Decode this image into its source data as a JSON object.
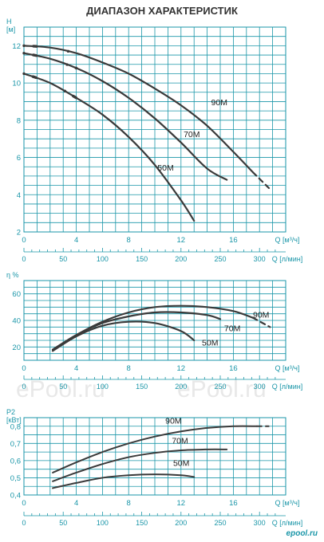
{
  "title": "ДИАПАЗОН ХАРАКТЕРИСТИК",
  "watermarks": [
    "ePool.ru",
    "ePool.ru"
  ],
  "logo": "epool.ru",
  "colors": {
    "grid": "#1a96a8",
    "curve": "#3a3a3a"
  },
  "chart_data": [
    {
      "id": "head",
      "type": "line",
      "ylabel_top": "H",
      "ylabel_unit": "[м]",
      "xlabel": "Q [м³/ч]",
      "xlabel2": "Q [л/мин]",
      "xlim": [
        0,
        20
      ],
      "ylim": [
        2,
        13
      ],
      "x_ticks": [
        0,
        4,
        8,
        12,
        16
      ],
      "y_ticks": [
        2,
        4,
        6,
        8,
        10,
        12
      ],
      "x2_ticks": [
        0,
        50,
        100,
        150,
        200,
        250,
        300
      ],
      "series": [
        {
          "name": "90M",
          "label_at": [
            14.3,
            8.8
          ],
          "dash_end_at": 17.5,
          "x": [
            0,
            2,
            4,
            6,
            8,
            10,
            12,
            14,
            16,
            17.5,
            18.8
          ],
          "y": [
            12.0,
            11.9,
            11.6,
            11.1,
            10.5,
            9.7,
            8.8,
            7.7,
            6.3,
            5.2,
            4.3
          ]
        },
        {
          "name": "70M",
          "label_at": [
            12.2,
            7.1
          ],
          "dash_end_at": null,
          "x": [
            0,
            2,
            4,
            6,
            8,
            10,
            12,
            14,
            15.5
          ],
          "y": [
            11.6,
            11.3,
            10.8,
            10.1,
            9.2,
            8.1,
            6.8,
            5.4,
            4.8
          ]
        },
        {
          "name": "50M",
          "label_at": [
            10.2,
            5.3
          ],
          "dash_end_at": null,
          "x": [
            0,
            2,
            4,
            6,
            8,
            10,
            12,
            13.0
          ],
          "y": [
            10.5,
            10.0,
            9.2,
            8.3,
            7.1,
            5.6,
            3.7,
            2.6
          ]
        }
      ]
    },
    {
      "id": "efficiency",
      "type": "line",
      "ylabel_top": "η %",
      "xlabel": "Q [м³/ч]",
      "xlabel2": "Q [л/мин]",
      "xlim": [
        0,
        20
      ],
      "ylim": [
        10,
        70
      ],
      "x_ticks": [
        0,
        4,
        8,
        12,
        16
      ],
      "y_ticks": [
        20,
        40,
        60
      ],
      "x2_ticks": [
        0,
        50,
        100,
        150,
        200,
        250,
        300
      ],
      "series": [
        {
          "name": "90M",
          "label_at": [
            17.5,
            42
          ],
          "dash_end_at": 17.5,
          "x": [
            2.2,
            4,
            6,
            8,
            10,
            12,
            14,
            16,
            17.5,
            18.8
          ],
          "y": [
            18,
            29,
            39,
            46,
            50,
            51,
            50,
            47,
            42,
            35
          ]
        },
        {
          "name": "70M",
          "label_at": [
            15.3,
            32
          ],
          "dash_end_at": null,
          "x": [
            2.2,
            4,
            6,
            8,
            10,
            12,
            14,
            15.0
          ],
          "y": [
            18,
            29,
            38,
            43,
            46,
            46,
            44,
            41
          ]
        },
        {
          "name": "50M",
          "label_at": [
            13.6,
            21
          ],
          "dash_end_at": null,
          "x": [
            2.2,
            4,
            6,
            8,
            10,
            12,
            13.0
          ],
          "y": [
            17,
            28,
            36,
            39,
            38,
            32,
            25
          ]
        }
      ]
    },
    {
      "id": "power",
      "type": "line",
      "ylabel_top": "P2",
      "ylabel_unit": "[кВт]",
      "xlabel": "Q [м³/ч]",
      "xlabel2": "Q [л/мин]",
      "xlim": [
        0,
        20
      ],
      "ylim": [
        0.4,
        0.85
      ],
      "x_ticks": [
        0,
        4,
        8,
        12,
        16
      ],
      "y_ticks": [
        0.4,
        0.5,
        0.6,
        0.7,
        0.8
      ],
      "y_tick_labels": [
        "0,4",
        "0,5",
        "0,6",
        "0,7",
        "0,8"
      ],
      "x2_ticks": [
        0,
        50,
        100,
        150,
        200,
        250,
        300
      ],
      "series": [
        {
          "name": "90M",
          "label_at": [
            10.8,
            0.815
          ],
          "dash_end_at": 17.8,
          "x": [
            2.2,
            4,
            6,
            8,
            10,
            12,
            14,
            16,
            17.8,
            18.7
          ],
          "y": [
            0.53,
            0.59,
            0.65,
            0.7,
            0.74,
            0.77,
            0.79,
            0.8,
            0.8,
            0.8
          ]
        },
        {
          "name": "70M",
          "label_at": [
            11.3,
            0.7
          ],
          "dash_end_at": null,
          "x": [
            2.2,
            4,
            6,
            8,
            10,
            12,
            14,
            15.5
          ],
          "y": [
            0.48,
            0.53,
            0.58,
            0.62,
            0.645,
            0.66,
            0.665,
            0.665
          ]
        },
        {
          "name": "50M",
          "label_at": [
            11.4,
            0.57
          ],
          "dash_end_at": null,
          "x": [
            2.2,
            4,
            6,
            8,
            10,
            12,
            13.0
          ],
          "y": [
            0.44,
            0.47,
            0.5,
            0.515,
            0.52,
            0.515,
            0.505
          ]
        }
      ]
    }
  ]
}
